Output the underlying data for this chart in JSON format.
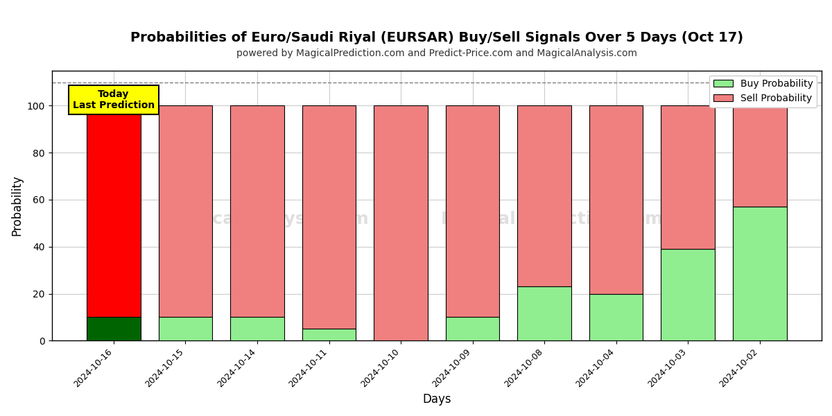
{
  "title": "Probabilities of Euro/Saudi Riyal (EURSAR) Buy/Sell Signals Over 5 Days (Oct 17)",
  "subtitle": "powered by MagicalPrediction.com and Predict-Price.com and MagicalAnalysis.com",
  "xlabel": "Days",
  "ylabel": "Probability",
  "ylim": [
    0,
    115
  ],
  "yticks": [
    0,
    20,
    40,
    60,
    80,
    100
  ],
  "categories": [
    "2024-10-16",
    "2024-10-15",
    "2024-10-14",
    "2024-10-11",
    "2024-10-10",
    "2024-10-09",
    "2024-10-08",
    "2024-10-04",
    "2024-10-03",
    "2024-10-02"
  ],
  "buy_values": [
    10,
    10,
    10,
    5,
    0,
    10,
    23,
    20,
    39,
    57
  ],
  "sell_values": [
    90,
    90,
    90,
    95,
    100,
    90,
    77,
    80,
    61,
    43
  ],
  "today_buy_color": "#006400",
  "today_sell_color": "#ff0000",
  "buy_color": "#90ee90",
  "sell_color": "#f08080",
  "today_index": 0,
  "today_label": "Today\nLast Prediction",
  "today_label_bg": "#ffff00",
  "dashed_line_y": 110,
  "dashed_line_color": "#808080",
  "watermark_text1": "MagicalAnalysis.com",
  "watermark_text2": "MagicalPrediction.com",
  "background_color": "#ffffff",
  "legend_buy_label": "Buy Probability",
  "legend_sell_label": "Sell Probability",
  "bar_width": 0.75,
  "edgecolor": "#000000",
  "title_fontsize": 14,
  "subtitle_fontsize": 10,
  "tick_fontsize": 9,
  "axis_label_fontsize": 12
}
